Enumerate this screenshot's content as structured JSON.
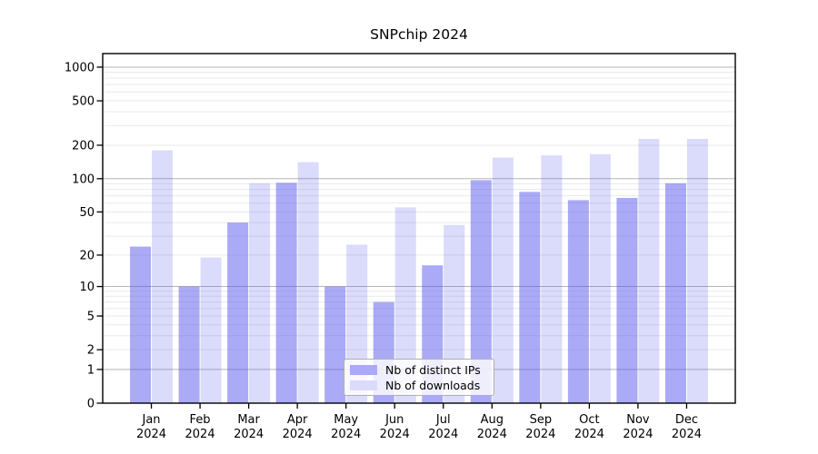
{
  "chart_data": {
    "type": "bar",
    "title": "SNPchip 2024",
    "scale": "log10(1+x)",
    "categories": [
      "Jan",
      "Feb",
      "Mar",
      "Apr",
      "May",
      "Jun",
      "Jul",
      "Aug",
      "Sep",
      "Oct",
      "Nov",
      "Dec"
    ],
    "year": "2024",
    "series": [
      {
        "name": "Nb of distinct IPs",
        "base_color": "#5555ee",
        "fill_alpha": 0.5,
        "values": [
          24,
          10,
          40,
          92,
          10,
          7,
          16,
          97,
          76,
          64,
          67,
          91
        ]
      },
      {
        "name": "Nb of downloads",
        "base_color": "#5555ee",
        "fill_alpha": 0.21,
        "values": [
          180,
          19,
          91,
          141,
          25,
          55,
          38,
          155,
          162,
          166,
          228,
          228
        ]
      }
    ],
    "yticks": [
      0,
      1,
      2,
      5,
      10,
      20,
      50,
      100,
      200,
      500,
      1000
    ],
    "ylim": [
      0,
      1330
    ],
    "grid": {
      "major_values": [
        1,
        10,
        100,
        1000
      ],
      "minor_values": [
        2,
        3,
        4,
        5,
        6,
        7,
        8,
        9,
        20,
        30,
        40,
        50,
        60,
        70,
        80,
        90,
        200,
        300,
        400,
        500,
        600,
        700,
        800,
        900
      ],
      "major_color": "#b5b5b5",
      "minor_color": "#eaeaea"
    },
    "legend_position": "lower center",
    "axis_color": "#000000",
    "background_color": "#ffffff"
  }
}
